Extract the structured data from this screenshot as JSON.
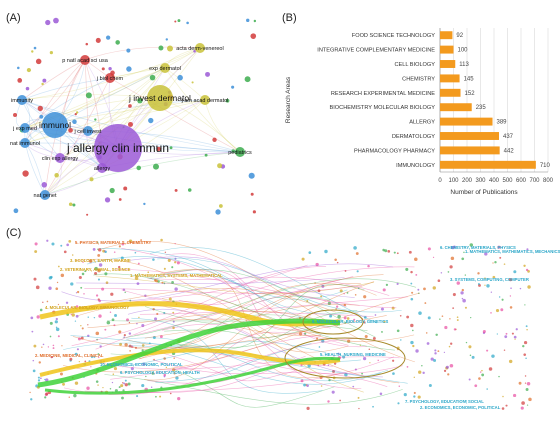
{
  "panels": {
    "a_label": "(A)",
    "b_label": "(B)",
    "c_label": "(C)"
  },
  "network_a": {
    "nodes": [
      {
        "label": "j allergy clin immun",
        "color": "#9b59d6",
        "size": "large"
      },
      {
        "label": "immunol",
        "color": "#3d8fd8",
        "size": "medium"
      },
      {
        "label": "j invest dermatol",
        "color": "#c9c23a",
        "size": "medium"
      },
      {
        "label": "p natl acad sci usa",
        "color": "#d23b3b",
        "size": "small"
      },
      {
        "label": "exp dermatol",
        "color": "#c9c23a",
        "size": "small"
      },
      {
        "label": "acta derm-venereol",
        "color": "#c9c23a",
        "size": "small"
      },
      {
        "label": "j am acad dermatol",
        "color": "#c9c23a",
        "size": "small"
      },
      {
        "label": "j exp med",
        "color": "#3d8fd8",
        "size": "small"
      },
      {
        "label": "immunity",
        "color": "#3d8fd8",
        "size": "small"
      },
      {
        "label": "clin exp allergy",
        "color": "#9b59d6",
        "size": "small"
      },
      {
        "label": "allergy",
        "color": "#9b59d6",
        "size": "small"
      },
      {
        "label": "j cell invest",
        "color": "#3d8fd8",
        "size": "small"
      },
      {
        "label": "nat immunol",
        "color": "#3d8fd8",
        "size": "small"
      },
      {
        "label": "j biol chem",
        "color": "#d23b3b",
        "size": "small"
      },
      {
        "label": "pediatrics",
        "color": "#3dad4f",
        "size": "small"
      },
      {
        "label": "nat genet",
        "color": "#3d8fd8",
        "size": "small"
      }
    ]
  },
  "chart_data": {
    "type": "bar",
    "orientation": "horizontal",
    "categories": [
      "IMMUNOLOGY",
      "PHARMACOLOGY PHARMACY",
      "DERMATOLOGY",
      "ALLERGY",
      "BIOCHEMISTRY MOLECULAR BIOLOGY",
      "RESEARCH EXPERIMENTAL MEDICINE",
      "CHEMISTRY",
      "CELL BIOLOGY",
      "INTEGRATIVE COMPLEMENTARY MEDICINE",
      "FOOD SCIENCE TECHNOLOGY"
    ],
    "values": [
      710,
      442,
      437,
      389,
      235,
      152,
      145,
      113,
      100,
      92
    ],
    "xlabel": "Number of Publications",
    "ylabel": "Research Areas",
    "xlim": [
      0,
      800
    ],
    "xticks": [
      0,
      100,
      200,
      300,
      400,
      500,
      600,
      700,
      800
    ],
    "bar_color": "#f39a1e",
    "grid": "vertical"
  },
  "overlay_c": {
    "left_labels": [
      {
        "text": "5. PHYSICS, MATERIALS, CHEMISTRY",
        "color": "#e06d2a"
      },
      {
        "text": "3. ECOLOGY, EARTH, MARINE",
        "color": "#d1a21a"
      },
      {
        "text": "2. VETERINARY, ANIMAL, SCIENCE",
        "color": "#d1a21a"
      },
      {
        "text": "1. MATHEMATICS, SYSTEMS, MATHEMATICAL",
        "color": "#d1a21a"
      },
      {
        "text": "4. MOLECULAR, BIOLOGY, IMMUNOLOGY",
        "color": "#d1a21a"
      },
      {
        "text": "2. MEDICINE, MEDICAL, CLINICAL",
        "color": "#e06d2a"
      },
      {
        "text": "10. ECONOMICS, ECONOMIC, POLITICAL",
        "color": "#2aa6c8"
      },
      {
        "text": "6. PSYCHOLOGY, EDUCATION, HEALTH",
        "color": "#2aa6c8"
      }
    ],
    "right_labels": [
      {
        "text": "6. CHEMISTRY, MATERIALS, PHYSICS",
        "color": "#2aa6c8"
      },
      {
        "text": "1. MATHEMATICS, MATHEMATICS, MECHANICS",
        "color": "#2aa6c8"
      },
      {
        "text": "3. SYSTEMS, COMPUTING, COMPUTER",
        "color": "#2aa6c8"
      },
      {
        "text": "8. MOLECULAR, BIOLOGY, GENETICS",
        "color": "#2aa6c8"
      },
      {
        "text": "5. HEALTH, NURSING, MEDICINE",
        "color": "#2aa6c8"
      },
      {
        "text": "7. PSYCHOLOGY, EDUCATION, SOCIAL",
        "color": "#2aa6c8"
      },
      {
        "text": "2. ECONOMICS, ECONOMIC, POLITICAL",
        "color": "#2aa6c8"
      }
    ]
  }
}
